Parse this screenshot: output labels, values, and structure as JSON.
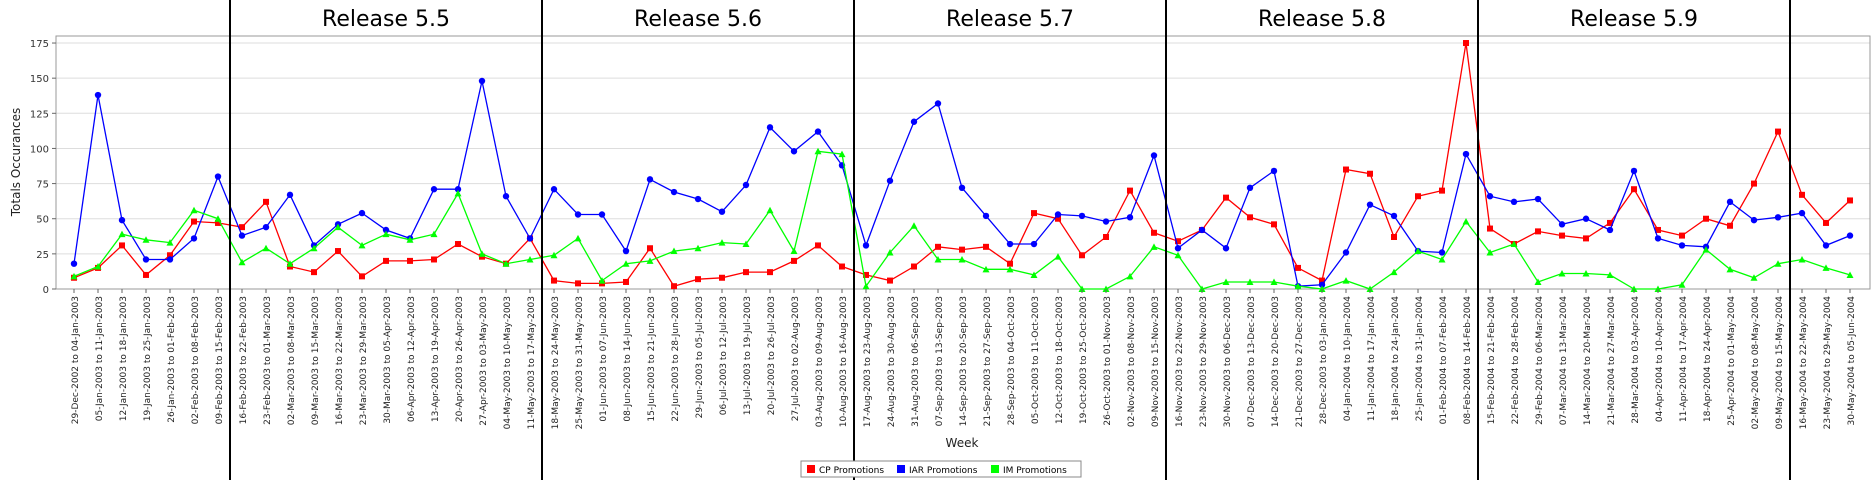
{
  "chart_data": {
    "type": "line",
    "title": "",
    "xlabel": "Week",
    "ylabel": "Totals Occurances",
    "ylim": [
      0,
      180
    ],
    "yticks": [
      0,
      25,
      50,
      75,
      100,
      125,
      150,
      175
    ],
    "grid": true,
    "legend_position": "bottom-center",
    "categories": [
      "29-Dec-2002 to 04-Jan-2003",
      "05-Jan-2003 to 11-Jan-2003",
      "12-Jan-2003 to 18-Jan-2003",
      "19-Jan-2003 to 25-Jan-2003",
      "26-Jan-2003 to 01-Feb-2003",
      "02-Feb-2003 to 08-Feb-2003",
      "09-Feb-2003 to 15-Feb-2003",
      "16-Feb-2003 to 22-Feb-2003",
      "23-Feb-2003 to 01-Mar-2003",
      "02-Mar-2003 to 08-Mar-2003",
      "09-Mar-2003 to 15-Mar-2003",
      "16-Mar-2003 to 22-Mar-2003",
      "23-Mar-2003 to 29-Mar-2003",
      "30-Mar-2003 to 05-Apr-2003",
      "06-Apr-2003 to 12-Apr-2003",
      "13-Apr-2003 to 19-Apr-2003",
      "20-Apr-2003 to 26-Apr-2003",
      "27-Apr-2003 to 03-May-2003",
      "04-May-2003 to 10-May-2003",
      "11-May-2003 to 17-May-2003",
      "18-May-2003 to 24-May-2003",
      "25-May-2003 to 31-May-2003",
      "01-Jun-2003 to 07-Jun-2003",
      "08-Jun-2003 to 14-Jun-2003",
      "15-Jun-2003 to 21-Jun-2003",
      "22-Jun-2003 to 28-Jun-2003",
      "29-Jun-2003 to 05-Jul-2003",
      "06-Jul-2003 to 12-Jul-2003",
      "13-Jul-2003 to 19-Jul-2003",
      "20-Jul-2003 to 26-Jul-2003",
      "27-Jul-2003 to 02-Aug-2003",
      "03-Aug-2003 to 09-Aug-2003",
      "10-Aug-2003 to 16-Aug-2003",
      "17-Aug-2003 to 23-Aug-2003",
      "24-Aug-2003 to 30-Aug-2003",
      "31-Aug-2003 to 06-Sep-2003",
      "07-Sep-2003 to 13-Sep-2003",
      "14-Sep-2003 to 20-Sep-2003",
      "21-Sep-2003 to 27-Sep-2003",
      "28-Sep-2003 to 04-Oct-2003",
      "05-Oct-2003 to 11-Oct-2003",
      "12-Oct-2003 to 18-Oct-2003",
      "19-Oct-2003 to 25-Oct-2003",
      "26-Oct-2003 to 01-Nov-2003",
      "02-Nov-2003 to 08-Nov-2003",
      "09-Nov-2003 to 15-Nov-2003",
      "16-Nov-2003 to 22-Nov-2003",
      "23-Nov-2003 to 29-Nov-2003",
      "30-Nov-2003 to 06-Dec-2003",
      "07-Dec-2003 to 13-Dec-2003",
      "14-Dec-2003 to 20-Dec-2003",
      "21-Dec-2003 to 27-Dec-2003",
      "28-Dec-2003 to 03-Jan-2004",
      "04-Jan-2004 to 10-Jan-2004",
      "11-Jan-2004 to 17-Jan-2004",
      "18-Jan-2004 to 24-Jan-2004",
      "25-Jan-2004 to 31-Jan-2004",
      "01-Feb-2004 to 07-Feb-2004",
      "08-Feb-2004 to 14-Feb-2004",
      "15-Feb-2004 to 21-Feb-2004",
      "22-Feb-2004 to 28-Feb-2004",
      "29-Feb-2004 to 06-Mar-2004",
      "07-Mar-2004 to 13-Mar-2004",
      "14-Mar-2004 to 20-Mar-2004",
      "21-Mar-2004 to 27-Mar-2004",
      "28-Mar-2004 to 03-Apr-2004",
      "04-Apr-2004 to 10-Apr-2004",
      "11-Apr-2004 to 17-Apr-2004",
      "18-Apr-2004 to 24-Apr-2004",
      "25-Apr-2004 to 01-May-2004",
      "02-May-2004 to 08-May-2004",
      "09-May-2004 to 15-May-2004",
      "16-May-2004 to 22-May-2004",
      "23-May-2004 to 29-May-2004",
      "30-May-2004 to 05-Jun-2004"
    ],
    "series": [
      {
        "name": "CP Promotions",
        "color": "#ff0000",
        "marker": "square",
        "values": [
          8,
          15,
          31,
          10,
          24,
          48,
          47,
          44,
          62,
          16,
          12,
          27,
          9,
          20,
          20,
          21,
          32,
          23,
          18,
          36,
          6,
          4,
          4,
          5,
          29,
          2,
          7,
          8,
          12,
          12,
          20,
          31,
          16,
          10,
          6,
          16,
          30,
          28,
          30,
          18,
          54,
          50,
          24,
          37,
          70,
          40,
          34,
          42,
          65,
          51,
          46,
          15,
          6,
          85,
          82,
          37,
          66,
          70,
          175,
          43,
          32,
          41,
          38,
          36,
          47,
          71,
          42,
          38,
          50,
          45,
          75,
          112,
          67,
          47,
          63
        ]
      },
      {
        "name": "IAR Promotions",
        "color": "#0000ff",
        "marker": "circle",
        "values": [
          18,
          138,
          49,
          21,
          21,
          36,
          80,
          38,
          44,
          67,
          31,
          46,
          54,
          42,
          36,
          71,
          71,
          148,
          66,
          36,
          71,
          53,
          53,
          27,
          78,
          69,
          64,
          55,
          74,
          115,
          98,
          112,
          88,
          31,
          77,
          119,
          132,
          72,
          52,
          32,
          32,
          53,
          52,
          48,
          51,
          95,
          29,
          42,
          29,
          72,
          84,
          2,
          3,
          26,
          60,
          52,
          27,
          26,
          96,
          66,
          62,
          64,
          46,
          50,
          42,
          84,
          36,
          31,
          30,
          62,
          49,
          51,
          54,
          31,
          38
        ]
      },
      {
        "name": "IM Promotions",
        "color": "#00ff00",
        "marker": "triangle",
        "values": [
          9,
          16,
          39,
          35,
          33,
          56,
          50,
          19,
          29,
          18,
          29,
          44,
          31,
          39,
          35,
          39,
          68,
          25,
          18,
          21,
          24,
          36,
          6,
          18,
          20,
          27,
          29,
          33,
          32,
          56,
          27,
          98,
          96,
          2,
          26,
          45,
          21,
          21,
          14,
          14,
          10,
          23,
          0,
          0,
          9,
          30,
          24,
          0,
          5,
          5,
          5,
          2,
          0,
          6,
          0,
          12,
          27,
          21,
          48,
          26,
          32,
          5,
          11,
          11,
          10,
          0,
          0,
          3,
          28,
          14,
          8,
          18,
          21,
          15,
          10
        ]
      }
    ],
    "releases": [
      {
        "label": "Release 5.5",
        "start_index": 7,
        "end_index": 19
      },
      {
        "label": "Release 5.6",
        "start_index": 20,
        "end_index": 32
      },
      {
        "label": "Release 5.7",
        "start_index": 33,
        "end_index": 45
      },
      {
        "label": "Release 5.8",
        "start_index": 46,
        "end_index": 58
      },
      {
        "label": "Release 5.9",
        "start_index": 59,
        "end_index": 71
      }
    ]
  }
}
